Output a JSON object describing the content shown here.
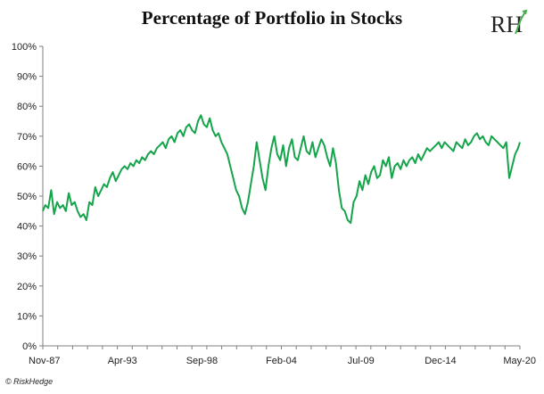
{
  "title": "Percentage of Portfolio in Stocks",
  "logo_text": "RH",
  "credit": "© RiskHedge",
  "colors": {
    "line": "#15a44a",
    "axis": "#7f7f7f",
    "logo_accent": "#4caf50"
  },
  "chart_data": {
    "type": "line",
    "title": "Percentage of Portfolio in Stocks",
    "xlabel": "",
    "ylabel": "",
    "ylim": [
      0,
      100
    ],
    "yticks": [
      "0%",
      "10%",
      "20%",
      "30%",
      "40%",
      "50%",
      "60%",
      "70%",
      "80%",
      "90%",
      "100%"
    ],
    "xticks": [
      {
        "label": "Nov-87",
        "x": 1987.83
      },
      {
        "label": "Apr-93",
        "x": 1993.25
      },
      {
        "label": "Sep-98",
        "x": 1998.67
      },
      {
        "label": "Feb-04",
        "x": 2004.08
      },
      {
        "label": "Jul-09",
        "x": 2009.5
      },
      {
        "label": "Dec-14",
        "x": 2014.92
      },
      {
        "label": "May-20",
        "x": 2020.33
      }
    ],
    "xlim": [
      1987.83,
      2020.33
    ],
    "grid": false,
    "series": [
      {
        "x": [
          1987.83,
          1988.0,
          1988.2,
          1988.4,
          1988.6,
          1988.8,
          1989.0,
          1989.2,
          1989.4,
          1989.6,
          1989.8,
          1990.0,
          1990.2,
          1990.4,
          1990.6,
          1990.8,
          1991.0,
          1991.2,
          1991.4,
          1991.6,
          1991.8,
          1992.0,
          1992.2,
          1992.4,
          1992.6,
          1992.8,
          1993.0,
          1993.2,
          1993.4,
          1993.6,
          1993.8,
          1994.0,
          1994.2,
          1994.4,
          1994.6,
          1994.8,
          1995.0,
          1995.2,
          1995.4,
          1995.6,
          1995.8,
          1996.0,
          1996.2,
          1996.4,
          1996.6,
          1996.8,
          1997.0,
          1997.2,
          1997.4,
          1997.6,
          1997.8,
          1998.0,
          1998.2,
          1998.4,
          1998.6,
          1998.8,
          1999.0,
          1999.2,
          1999.4,
          1999.6,
          1999.8,
          2000.0,
          2000.2,
          2000.4,
          2000.6,
          2000.8,
          2001.0,
          2001.2,
          2001.4,
          2001.6,
          2001.8,
          2002.0,
          2002.2,
          2002.4,
          2002.6,
          2002.8,
          2003.0,
          2003.2,
          2003.4,
          2003.6,
          2003.8,
          2004.0,
          2004.2,
          2004.4,
          2004.6,
          2004.8,
          2005.0,
          2005.2,
          2005.4,
          2005.6,
          2005.8,
          2006.0,
          2006.2,
          2006.4,
          2006.6,
          2006.8,
          2007.0,
          2007.2,
          2007.4,
          2007.6,
          2007.8,
          2008.0,
          2008.2,
          2008.4,
          2008.6,
          2008.8,
          2009.0,
          2009.2,
          2009.4,
          2009.6,
          2009.8,
          2010.0,
          2010.2,
          2010.4,
          2010.6,
          2010.8,
          2011.0,
          2011.2,
          2011.4,
          2011.6,
          2011.8,
          2012.0,
          2012.2,
          2012.4,
          2012.6,
          2012.8,
          2013.0,
          2013.2,
          2013.4,
          2013.6,
          2013.8,
          2014.0,
          2014.2,
          2014.4,
          2014.6,
          2014.8,
          2015.0,
          2015.2,
          2015.4,
          2015.6,
          2015.8,
          2016.0,
          2016.2,
          2016.4,
          2016.6,
          2016.8,
          2017.0,
          2017.2,
          2017.4,
          2017.6,
          2017.8,
          2018.0,
          2018.2,
          2018.4,
          2018.6,
          2018.8,
          2019.0,
          2019.2,
          2019.4,
          2019.6,
          2019.8,
          2020.0,
          2020.2,
          2020.33
        ],
        "values": [
          45,
          47,
          46,
          52,
          44,
          48,
          46,
          47,
          45,
          51,
          47,
          48,
          45,
          43,
          44,
          42,
          48,
          47,
          53,
          50,
          52,
          54,
          53,
          56,
          58,
          55,
          57,
          59,
          60,
          59,
          61,
          60,
          62,
          61,
          63,
          62,
          64,
          65,
          64,
          66,
          67,
          68,
          66,
          69,
          70,
          68,
          71,
          72,
          70,
          73,
          74,
          72,
          71,
          75,
          77,
          74,
          73,
          76,
          72,
          70,
          71,
          68,
          66,
          64,
          60,
          56,
          52,
          50,
          46,
          44,
          48,
          54,
          60,
          68,
          62,
          56,
          52,
          60,
          66,
          70,
          64,
          62,
          67,
          60,
          66,
          69,
          63,
          62,
          66,
          70,
          65,
          64,
          68,
          63,
          66,
          69,
          67,
          63,
          60,
          66,
          61,
          52,
          46,
          45,
          42,
          41,
          48,
          50,
          55,
          52,
          57,
          54,
          58,
          60,
          56,
          57,
          62,
          60,
          63,
          56,
          60,
          61,
          59,
          62,
          60,
          62,
          63,
          61,
          64,
          62,
          64,
          66,
          65,
          66,
          67,
          68,
          66,
          68,
          67,
          66,
          65,
          68,
          67,
          66,
          69,
          67,
          68,
          70,
          71,
          69,
          70,
          68,
          67,
          70,
          69,
          68,
          67,
          66,
          68,
          56,
          60,
          64,
          66,
          68
        ]
      }
    ]
  }
}
